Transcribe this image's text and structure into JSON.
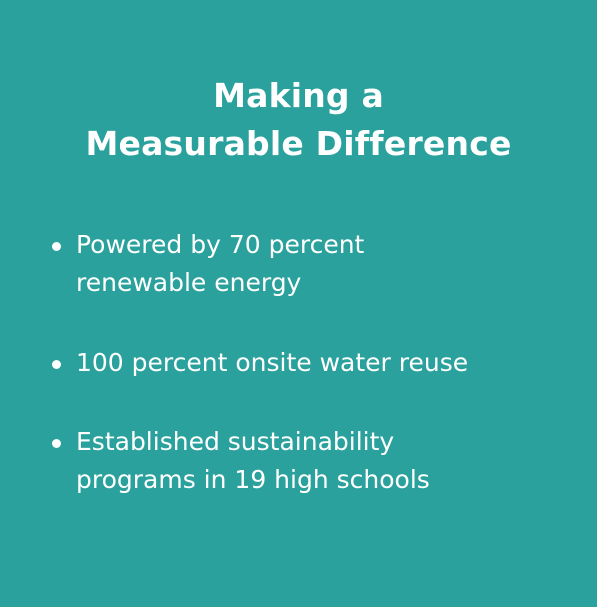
{
  "title": {
    "line1": "Making a",
    "line2": "Measurable Difference"
  },
  "bullets": [
    {
      "line1": "Powered by 70 percent",
      "line2": "renewable energy"
    },
    {
      "line1": "100 percent onsite water reuse"
    },
    {
      "line1": "Established sustainability",
      "line2": "programs in 19 high schools"
    }
  ]
}
